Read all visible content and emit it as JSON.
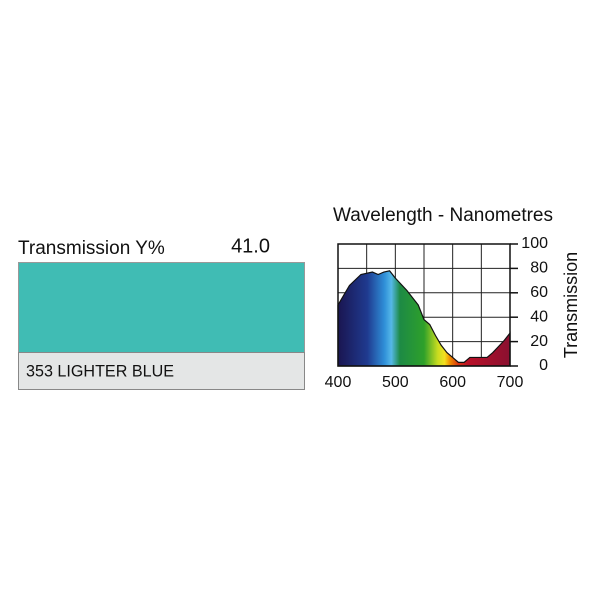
{
  "swatch": {
    "label": "Transmission Y%",
    "value_text": "41.0",
    "name": "353 LIGHTER BLUE",
    "color": "#40bcb4"
  },
  "chart_data": {
    "type": "area",
    "title": "Wavelength - Nanometres",
    "y_label": "Transmission",
    "x": [
      400,
      420,
      440,
      460,
      470,
      480,
      490,
      500,
      520,
      540,
      550,
      560,
      570,
      580,
      590,
      600,
      610,
      620,
      630,
      640,
      650,
      660,
      670,
      680,
      690,
      700
    ],
    "values": [
      50,
      66,
      75,
      77,
      75,
      77,
      78,
      72,
      62,
      50,
      38,
      34,
      25,
      17,
      11,
      7,
      3,
      3,
      7,
      7,
      7,
      7,
      11,
      16,
      21,
      27
    ],
    "xlim": [
      400,
      700
    ],
    "ylim": [
      0,
      100
    ],
    "xticks": [
      400,
      500,
      600,
      700
    ],
    "yticks": [
      0,
      20,
      40,
      60,
      80,
      100
    ],
    "grid": true
  }
}
